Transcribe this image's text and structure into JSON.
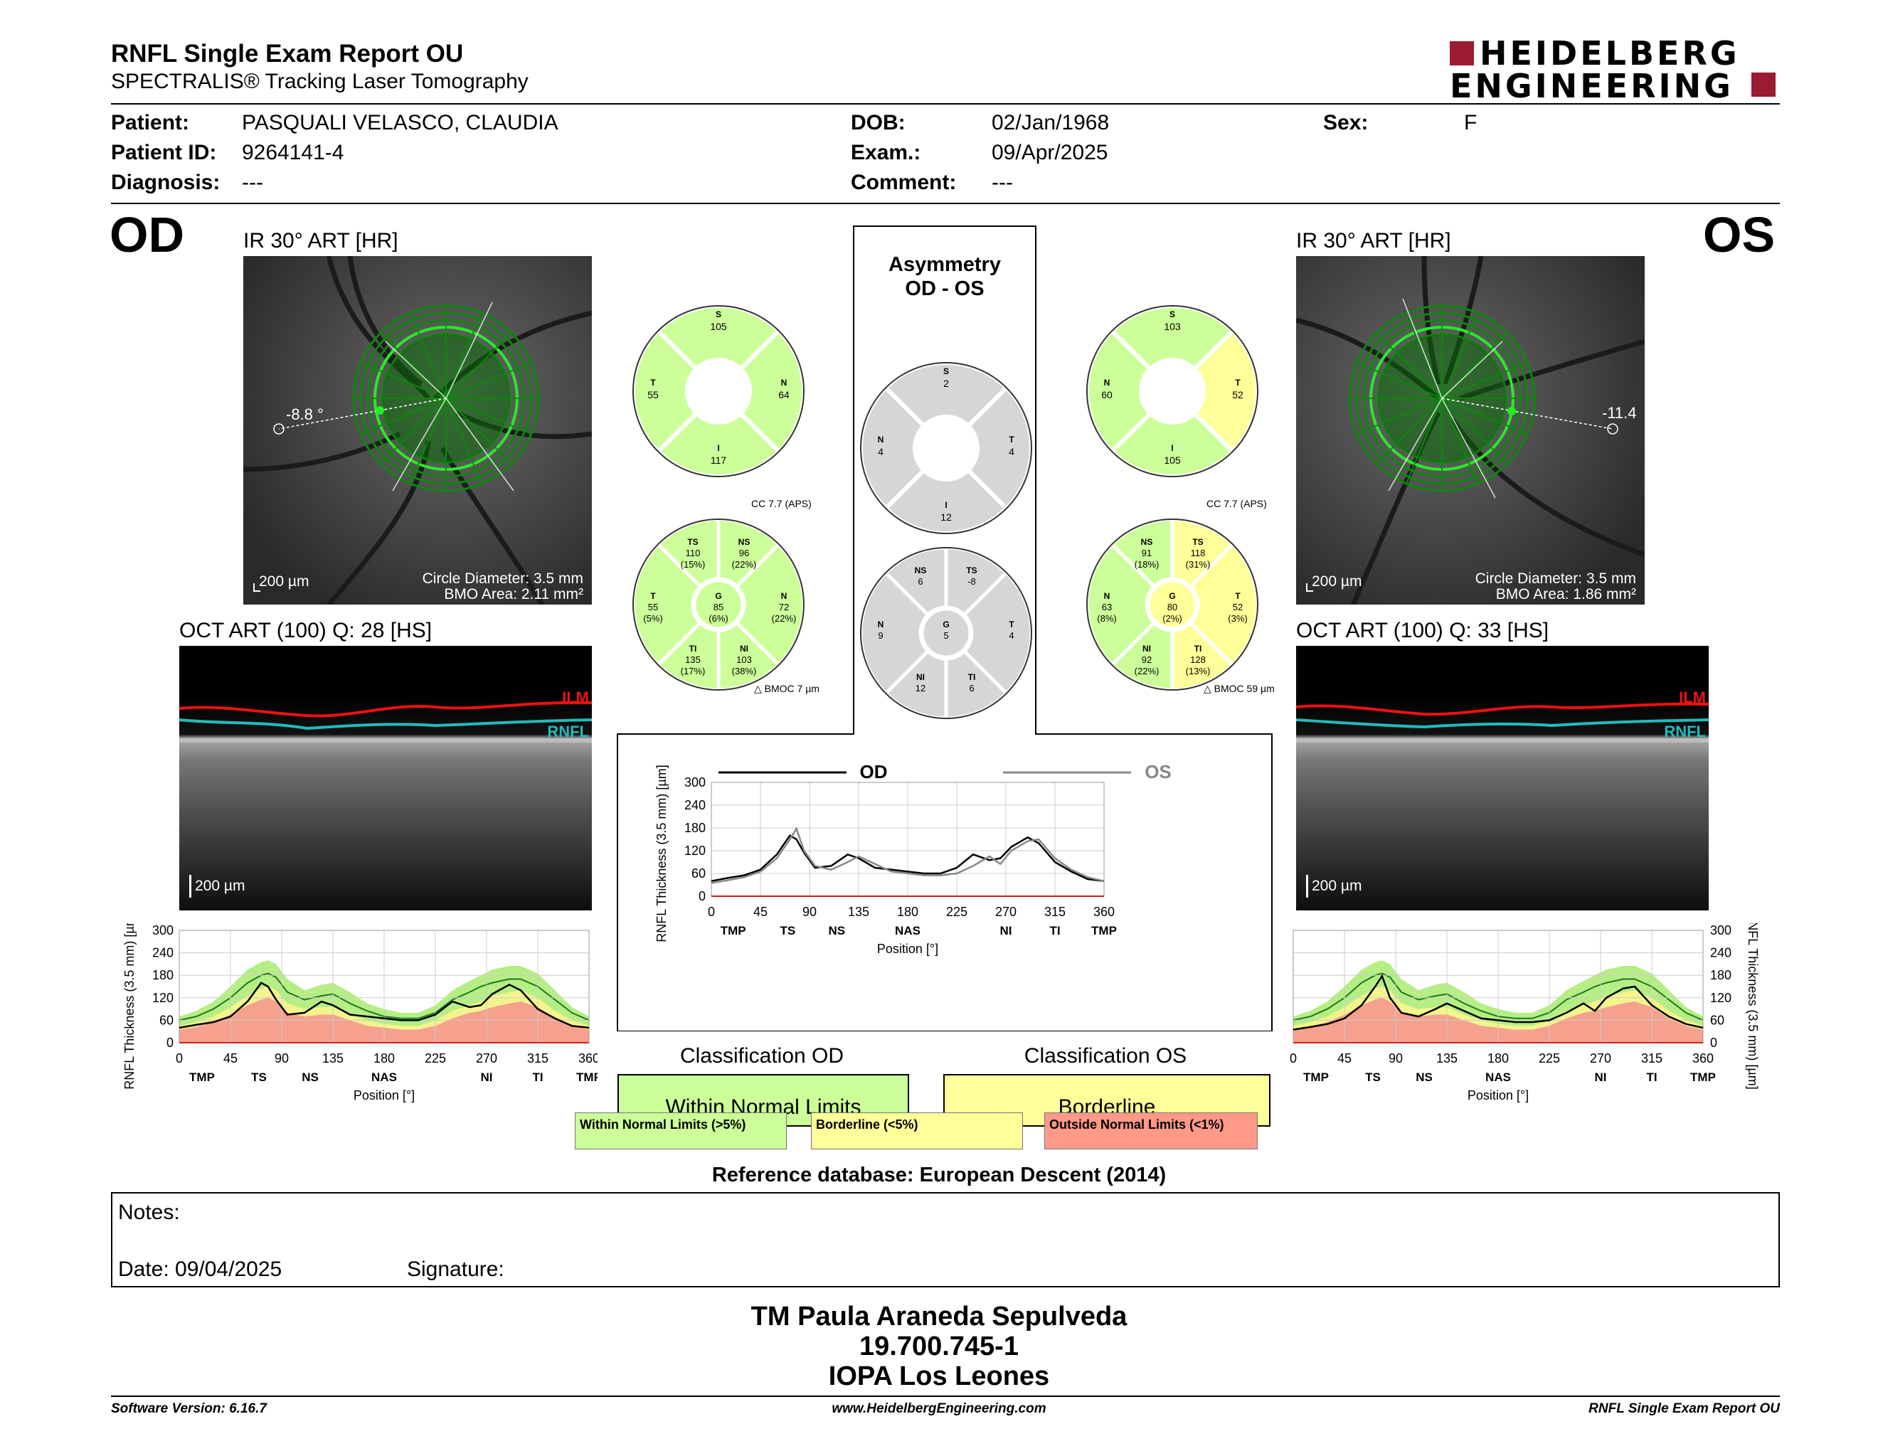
{
  "header": {
    "title": "RNFL Single Exam Report OU",
    "subtitle": "SPECTRALIS® Tracking Laser Tomography",
    "logo_line1": "HEIDELBERG",
    "logo_line2": "ENGINEERING"
  },
  "patient": {
    "patient_label": "Patient:",
    "patient_value": "PASQUALI VELASCO,  CLAUDIA",
    "id_label": "Patient ID:",
    "id_value": "9264141-4",
    "diagnosis_label": "Diagnosis:",
    "diagnosis_value": "---",
    "dob_label": "DOB:",
    "dob_value": "02/Jan/1968",
    "exam_label": "Exam.:",
    "exam_value": "09/Apr/2025",
    "comment_label": "Comment:",
    "comment_value": "---",
    "sex_label": "Sex:",
    "sex_value": "F"
  },
  "od": {
    "eye": "OD",
    "ir_title": "IR 30° ART [HR]",
    "angle": "-8.8 °",
    "scale": "200 µm",
    "circle_diameter": "Circle Diameter: 3.5 mm",
    "bmo_area": "BMO Area: 2.11 mm²",
    "oct_title": "OCT ART (100) Q: 28 [HS]",
    "oct_scale": "200 µm",
    "ilm": "ILM",
    "rnfl": "RNFL"
  },
  "os": {
    "eye": "OS",
    "ir_title": "IR 30° ART [HR]",
    "angle": "-11.4",
    "scale": "200 µm",
    "circle_diameter": "Circle Diameter: 3.5 mm",
    "bmo_area": "BMO Area: 1.86 mm²",
    "oct_title": "OCT ART (100) Q: 33 [HS]",
    "oct_scale": "200 µm",
    "ilm": "ILM",
    "rnfl": "RNFL"
  },
  "asymmetry": {
    "line1": "Asymmetry",
    "line2": "OD - OS"
  },
  "quadrants": {
    "od": {
      "S": "105",
      "T": "55",
      "N": "64",
      "I": "117"
    },
    "os": {
      "S": "103",
      "N": "60",
      "T": "52",
      "I": "105"
    },
    "asym": {
      "S": "2",
      "N": "4",
      "T": "4",
      "I": "12"
    }
  },
  "sectors": {
    "cc_od": "CC 7.7 (APS)",
    "cc_os": "CC 7.7 (APS)",
    "bmoc_od": "BMOC 7 µm",
    "bmoc_os": "BMOC 59 µm",
    "od": {
      "TS": [
        "110",
        "(15%)"
      ],
      "NS": [
        "96",
        "(22%)"
      ],
      "T": [
        "55",
        "(5%)"
      ],
      "G": [
        "85",
        "(6%)"
      ],
      "N": [
        "72",
        "(22%)"
      ],
      "TI": [
        "135",
        "(17%)"
      ],
      "NI": [
        "103",
        "(38%)"
      ]
    },
    "os": {
      "NS": [
        "91",
        "(18%)"
      ],
      "TS": [
        "118",
        "(31%)"
      ],
      "N": [
        "63",
        "(8%)"
      ],
      "G": [
        "80",
        "(2%)"
      ],
      "T": [
        "52",
        "(3%)"
      ],
      "NI": [
        "92",
        "(22%)"
      ],
      "TI": [
        "128",
        "(13%)"
      ]
    },
    "asym": {
      "NS": "6",
      "TS": "-8",
      "N": "9",
      "G": "5",
      "T": "4",
      "NI": "12",
      "TI": "6"
    }
  },
  "sector_labels": {
    "S": "S",
    "T": "T",
    "N": "N",
    "I": "I",
    "TS": "TS",
    "NS": "NS",
    "G": "G",
    "TI": "TI",
    "NI": "NI"
  },
  "classification": {
    "od_title": "Classification OD",
    "od_value": "Within Normal Limits",
    "os_title": "Classification OS",
    "os_value": "Borderline"
  },
  "legend": {
    "wnl": "Within Normal Limits (>5%)",
    "bl": "Borderline (<5%)",
    "onl": "Outside Normal Limits (<1%)"
  },
  "reference_db": "Reference database: European Descent (2014)",
  "notes": {
    "notes_label": "Notes:",
    "date_label": "Date: 09/04/2025",
    "signature_label": "Signature:"
  },
  "operator": {
    "name": "TM Paula Araneda Sepulveda",
    "id": "19.700.745-1",
    "site": "IOPA Los Leones"
  },
  "footer": {
    "software": "Software Version: 6.16.7",
    "website": "www.HeidelbergEngineering.com",
    "report_name": "RNFL Single Exam Report OU"
  },
  "colors": {
    "wnl": "#ccff99",
    "borderline": "#ffff99",
    "onl": "#ff9988",
    "gray": "#d6d6d6",
    "brand": "#9b1b30",
    "band_green": "#b6ee85",
    "band_yellow": "#f4f48d",
    "band_red": "#f6a08e"
  },
  "chart_data": [
    {
      "type": "line",
      "name": "comparison",
      "xlabel": "Position [°]",
      "ylabel": "RNFL Thickness (3.5 mm) [µm]",
      "xlim": [
        0,
        360
      ],
      "ylim": [
        0,
        300
      ],
      "xticks": [
        0,
        45,
        90,
        135,
        180,
        225,
        270,
        315,
        360
      ],
      "yticks": [
        0,
        60,
        120,
        180,
        240,
        300
      ],
      "sector_labels": [
        {
          "label": "TMP",
          "x": 20
        },
        {
          "label": "TS",
          "x": 70
        },
        {
          "label": "NS",
          "x": 115
        },
        {
          "label": "NAS",
          "x": 180
        },
        {
          "label": "NI",
          "x": 270
        },
        {
          "label": "TI",
          "x": 315
        },
        {
          "label": "TMP",
          "x": 360
        }
      ],
      "legend": [
        "OD",
        "OS"
      ],
      "x": [
        0,
        15,
        30,
        45,
        60,
        72,
        78,
        85,
        95,
        110,
        125,
        135,
        150,
        165,
        180,
        195,
        210,
        225,
        240,
        255,
        265,
        275,
        290,
        300,
        315,
        330,
        345,
        360
      ],
      "series": [
        {
          "name": "OD",
          "values": [
            40,
            48,
            55,
            70,
            110,
            160,
            150,
            115,
            75,
            80,
            110,
            100,
            75,
            70,
            65,
            60,
            60,
            75,
            110,
            95,
            100,
            130,
            155,
            140,
            90,
            65,
            45,
            40
          ]
        },
        {
          "name": "OS",
          "values": [
            35,
            42,
            50,
            65,
            100,
            150,
            178,
            120,
            80,
            70,
            90,
            105,
            85,
            65,
            60,
            55,
            55,
            60,
            80,
            105,
            85,
            120,
            145,
            150,
            100,
            70,
            50,
            40
          ]
        }
      ]
    },
    {
      "type": "area",
      "name": "od_profile",
      "xlabel": "Position [°]",
      "ylabel": "RNFL Thickness (3.5 mm) [µm]",
      "xlim": [
        0,
        360
      ],
      "ylim": [
        0,
        300
      ],
      "xticks": [
        0,
        45,
        90,
        135,
        180,
        225,
        270,
        315,
        360
      ],
      "yticks": [
        0,
        60,
        120,
        180,
        240,
        300
      ],
      "sector_labels": [
        {
          "label": "TMP",
          "x": 20
        },
        {
          "label": "TS",
          "x": 70
        },
        {
          "label": "NS",
          "x": 115
        },
        {
          "label": "NAS",
          "x": 180
        },
        {
          "label": "NI",
          "x": 270
        },
        {
          "label": "TI",
          "x": 315
        },
        {
          "label": "TMP",
          "x": 360
        }
      ],
      "x": [
        0,
        15,
        30,
        45,
        60,
        72,
        78,
        85,
        95,
        110,
        125,
        135,
        150,
        165,
        180,
        195,
        210,
        225,
        240,
        255,
        265,
        275,
        290,
        300,
        315,
        330,
        345,
        360
      ],
      "bands": {
        "p99_upper": [
          70,
          85,
          110,
          150,
          195,
          215,
          220,
          210,
          170,
          140,
          155,
          160,
          135,
          105,
          90,
          80,
          80,
          100,
          140,
          165,
          180,
          195,
          205,
          205,
          185,
          140,
          95,
          70
        ],
        "p5_lower": [
          45,
          55,
          70,
          95,
          125,
          145,
          150,
          140,
          105,
          90,
          95,
          95,
          75,
          60,
          50,
          45,
          45,
          60,
          85,
          100,
          110,
          125,
          135,
          140,
          120,
          85,
          60,
          45
        ],
        "p1_lower": [
          35,
          42,
          55,
          75,
          100,
          115,
          120,
          110,
          80,
          70,
          75,
          75,
          60,
          45,
          40,
          35,
          35,
          45,
          65,
          80,
          85,
          95,
          105,
          110,
          95,
          65,
          45,
          35
        ],
        "normal": [
          60,
          70,
          90,
          120,
          160,
          180,
          185,
          175,
          135,
          115,
          125,
          130,
          105,
          85,
          70,
          65,
          65,
          80,
          115,
          135,
          150,
          160,
          170,
          170,
          150,
          115,
          80,
          60
        ]
      },
      "series": [
        {
          "name": "OD",
          "values": [
            40,
            48,
            55,
            70,
            110,
            160,
            150,
            115,
            75,
            80,
            110,
            100,
            75,
            70,
            65,
            60,
            60,
            75,
            110,
            95,
            100,
            130,
            155,
            140,
            90,
            65,
            45,
            40
          ]
        }
      ]
    },
    {
      "type": "area",
      "name": "os_profile",
      "xlabel": "Position [°]",
      "ylabel": "RNFL Thickness (3.5 mm) [µm]",
      "xlim": [
        0,
        360
      ],
      "ylim": [
        0,
        300
      ],
      "xticks": [
        0,
        45,
        90,
        135,
        180,
        225,
        270,
        315,
        360
      ],
      "yticks": [
        0,
        60,
        120,
        180,
        240,
        300
      ],
      "sector_labels": [
        {
          "label": "TMP",
          "x": 20
        },
        {
          "label": "TS",
          "x": 70
        },
        {
          "label": "NS",
          "x": 115
        },
        {
          "label": "NAS",
          "x": 180
        },
        {
          "label": "NI",
          "x": 270
        },
        {
          "label": "TI",
          "x": 315
        },
        {
          "label": "TMP",
          "x": 360
        }
      ],
      "x": [
        0,
        15,
        30,
        45,
        60,
        72,
        78,
        85,
        95,
        110,
        125,
        135,
        150,
        165,
        180,
        195,
        210,
        225,
        240,
        255,
        265,
        275,
        290,
        300,
        315,
        330,
        345,
        360
      ],
      "bands": {
        "p99_upper": [
          70,
          85,
          110,
          150,
          195,
          215,
          220,
          210,
          170,
          140,
          155,
          160,
          135,
          105,
          90,
          80,
          80,
          100,
          140,
          165,
          180,
          195,
          205,
          205,
          185,
          140,
          95,
          70
        ],
        "p5_lower": [
          45,
          55,
          70,
          95,
          125,
          145,
          150,
          140,
          105,
          90,
          95,
          95,
          75,
          60,
          50,
          45,
          45,
          60,
          85,
          100,
          110,
          125,
          135,
          140,
          120,
          85,
          60,
          45
        ],
        "p1_lower": [
          35,
          42,
          55,
          75,
          100,
          115,
          120,
          110,
          80,
          70,
          75,
          75,
          60,
          45,
          40,
          35,
          35,
          45,
          65,
          80,
          85,
          95,
          105,
          110,
          95,
          65,
          45,
          35
        ],
        "normal": [
          60,
          70,
          90,
          120,
          160,
          180,
          185,
          175,
          135,
          115,
          125,
          130,
          105,
          85,
          70,
          65,
          65,
          80,
          115,
          135,
          150,
          160,
          170,
          170,
          150,
          115,
          80,
          60
        ]
      },
      "series": [
        {
          "name": "OS",
          "values": [
            35,
            42,
            50,
            65,
            100,
            150,
            178,
            120,
            80,
            70,
            90,
            105,
            85,
            65,
            60,
            55,
            55,
            60,
            80,
            105,
            85,
            120,
            145,
            150,
            100,
            70,
            50,
            40
          ]
        }
      ]
    }
  ]
}
